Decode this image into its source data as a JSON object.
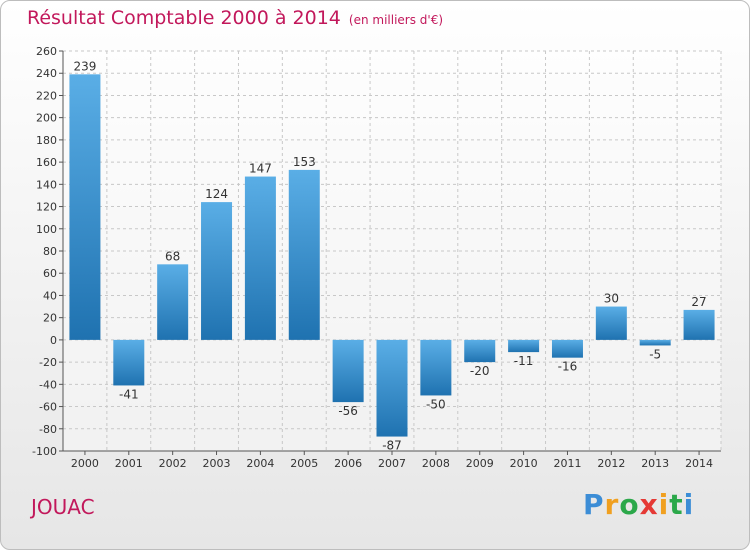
{
  "chart_data": {
    "type": "bar",
    "title": "Résultat Comptable 2000 à 2014",
    "subtitle": "(en milliers d'€)",
    "categories": [
      "2000",
      "2001",
      "2002",
      "2003",
      "2004",
      "2005",
      "2006",
      "2007",
      "2008",
      "2009",
      "2010",
      "2011",
      "2012",
      "2013",
      "2014"
    ],
    "values": [
      239,
      -41,
      68,
      124,
      147,
      153,
      -56,
      -87,
      -50,
      -20,
      -11,
      -16,
      30,
      -5,
      27
    ],
    "data_labels": [
      "239",
      "-41",
      "68",
      "124",
      "147",
      "153",
      "-56",
      "-87",
      "-50",
      "-20",
      "-11",
      "-16",
      "30",
      "-5",
      "27"
    ],
    "ylim": [
      -100,
      260
    ],
    "yticks": [
      -100,
      -80,
      -60,
      -40,
      -20,
      0,
      20,
      40,
      60,
      80,
      100,
      120,
      140,
      160,
      180,
      200,
      220,
      240,
      260
    ],
    "xlabel": "",
    "ylabel": "",
    "grid": true,
    "bar_color_top": "#5aaee6",
    "bar_color_bottom": "#1f72b0"
  },
  "commune": "JOUAC",
  "logo": {
    "letters": [
      "P",
      "r",
      "o",
      "x",
      "i",
      "t",
      "i"
    ],
    "colors": [
      "#3c8dd6",
      "#f0a020",
      "#2ba84a",
      "#e53935",
      "#f0a020",
      "#2ba84a",
      "#3c8dd6"
    ]
  }
}
